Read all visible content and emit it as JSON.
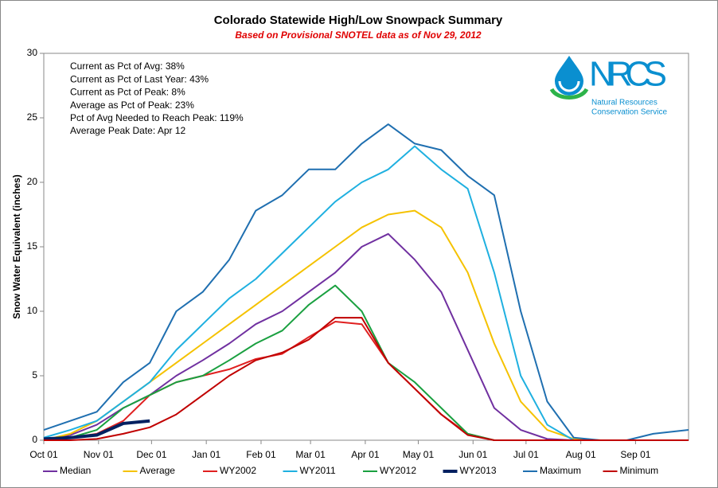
{
  "chart_data": {
    "type": "line",
    "title": "Colorado Statewide High/Low Snowpack Summary",
    "subtitle": "Based on Provisional SNOTEL data as of Nov 29, 2012",
    "y_label": "Snow Water Equivalent (inches)",
    "annotations": [
      "Current as Pct of Avg: 38%",
      "Current as Pct of Last Year: 43%",
      "Current as Pct of Peak: 8%",
      "Average as Pct of Peak: 23%",
      "Pct of Avg Needed to Reach Peak: 119%",
      "Average Peak Date: Apr 12"
    ],
    "logo": {
      "name": "NRCS",
      "line1": "Natural Resources",
      "line2": "Conservation Service"
    },
    "x": [
      0,
      15,
      30,
      45,
      60,
      75,
      90,
      105,
      120,
      135,
      150,
      165,
      180,
      195,
      210,
      225,
      240,
      255,
      270,
      285,
      300,
      315,
      330,
      345,
      365
    ],
    "xlim": [
      0,
      365
    ],
    "xticks": [
      {
        "value": 0,
        "label": "Oct 01"
      },
      {
        "value": 31,
        "label": "Nov 01"
      },
      {
        "value": 61,
        "label": "Dec 01"
      },
      {
        "value": 92,
        "label": "Jan 01"
      },
      {
        "value": 123,
        "label": "Feb 01"
      },
      {
        "value": 151,
        "label": "Mar 01"
      },
      {
        "value": 182,
        "label": "Apr 01"
      },
      {
        "value": 212,
        "label": "May 01"
      },
      {
        "value": 243,
        "label": "Jun 01"
      },
      {
        "value": 273,
        "label": "Jul 01"
      },
      {
        "value": 304,
        "label": "Aug 01"
      },
      {
        "value": 335,
        "label": "Sep 01"
      }
    ],
    "ylim": [
      0,
      30
    ],
    "yticks": [
      0,
      5,
      10,
      15,
      20,
      25,
      30
    ],
    "grid": false,
    "legend": "bottom",
    "series": [
      {
        "name": "Median",
        "color": "#7030a0",
        "width": 2,
        "values": [
          0,
          0.4,
          1.2,
          2.5,
          3.5,
          5,
          6.2,
          7.5,
          9,
          10,
          11.5,
          13,
          15,
          16,
          14,
          11.5,
          7,
          2.5,
          0.8,
          0.1,
          0,
          0,
          0,
          0,
          0
        ]
      },
      {
        "name": "Average",
        "color": "#f5c200",
        "width": 2,
        "values": [
          0,
          0.5,
          1.5,
          3,
          4.5,
          6,
          7.5,
          9,
          10.5,
          12,
          13.5,
          15,
          16.5,
          17.5,
          17.8,
          16.5,
          13,
          7.5,
          3,
          0.8,
          0.1,
          0,
          0,
          0,
          0
        ]
      },
      {
        "name": "WY2002",
        "color": "#e02020",
        "width": 2,
        "values": [
          0,
          0.2,
          0.5,
          1.5,
          3.5,
          4.5,
          5,
          5.5,
          6.3,
          6.7,
          8,
          9.2,
          9,
          6,
          4,
          2,
          0.5,
          0,
          0,
          0,
          0,
          0,
          0,
          0,
          0
        ]
      },
      {
        "name": "WY2011",
        "color": "#1fb0e0",
        "width": 2,
        "values": [
          0.2,
          0.8,
          1.5,
          3,
          4.5,
          7,
          9,
          11,
          12.5,
          14.5,
          16.5,
          18.5,
          20,
          21,
          22.8,
          21,
          19.5,
          13,
          5,
          1.2,
          0,
          0,
          0,
          0,
          0
        ]
      },
      {
        "name": "WY2012",
        "color": "#1aa040",
        "width": 2,
        "values": [
          0,
          0.2,
          0.8,
          2.5,
          3.5,
          4.5,
          5,
          6.2,
          7.5,
          8.5,
          10.5,
          12,
          10,
          6,
          4.5,
          2.5,
          0.5,
          0,
          0,
          0,
          0,
          0,
          0,
          0,
          0
        ]
      },
      {
        "name": "WY2013",
        "color": "#002060",
        "width": 4,
        "values": [
          0.1,
          0.2,
          0.4,
          1.3,
          1.5,
          null,
          null,
          null,
          null,
          null,
          null,
          null,
          null,
          null,
          null,
          null,
          null,
          null,
          null,
          null,
          null,
          null,
          null,
          null,
          null
        ]
      },
      {
        "name": "Maximum",
        "color": "#1f6fb0",
        "width": 2,
        "values": [
          0.8,
          1.5,
          2.2,
          4.5,
          6,
          10,
          11.5,
          14,
          17.8,
          19,
          21,
          21,
          23,
          24.5,
          23,
          22.5,
          20.5,
          19,
          10,
          3,
          0.2,
          0,
          0,
          0.5,
          0.8
        ]
      },
      {
        "name": "Minimum",
        "color": "#c00000",
        "width": 2,
        "values": [
          0,
          0,
          0.1,
          0.5,
          1,
          2,
          3.5,
          5,
          6.2,
          6.8,
          7.8,
          9.5,
          9.5,
          6,
          4,
          2,
          0.4,
          0,
          0,
          0,
          0,
          0,
          0,
          0,
          0
        ]
      }
    ]
  }
}
